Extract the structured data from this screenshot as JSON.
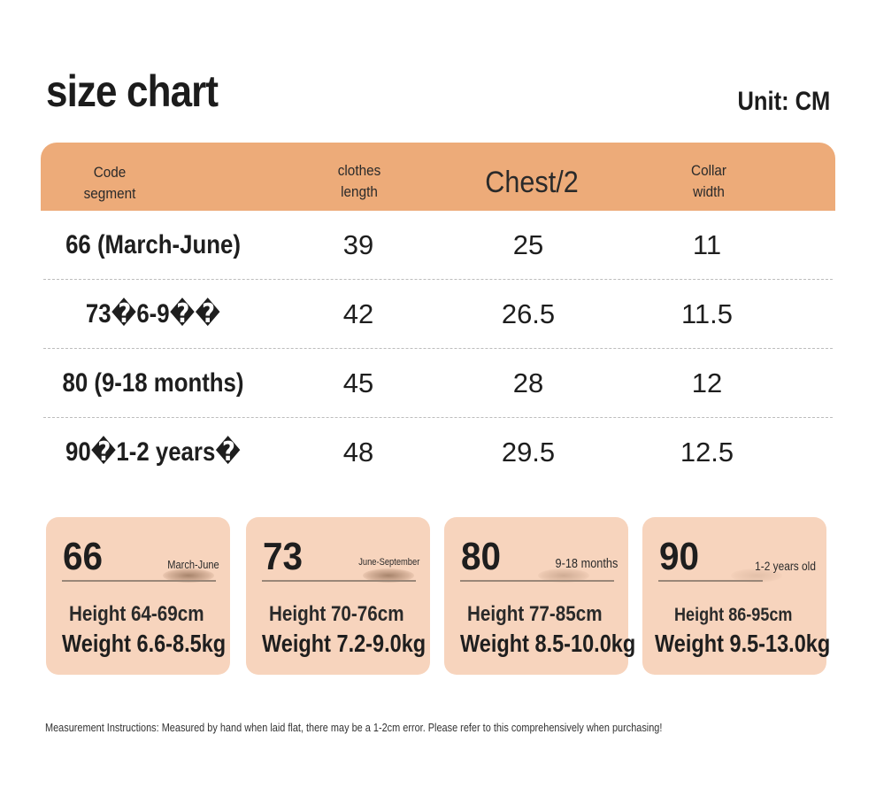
{
  "title": "size chart",
  "unit": "Unit: CM",
  "table": {
    "headers": {
      "code_line1": "Code",
      "code_line2": "segment",
      "length_line1": "clothes",
      "length_line2": "length",
      "chest": "Chest/2",
      "collar_line1": "Collar",
      "collar_line2": "width"
    },
    "rows": [
      {
        "code": "66 (March-June)",
        "length": "39",
        "chest": "25",
        "collar": "11"
      },
      {
        "code": "73�6-9��",
        "length": "42",
        "chest": "26.5",
        "collar": "11.5"
      },
      {
        "code": "80 (9-18 months)",
        "length": "45",
        "chest": "28",
        "collar": "12"
      },
      {
        "code": "90�1-2 years�",
        "length": "48",
        "chest": "29.5",
        "collar": "12.5"
      }
    ]
  },
  "cards": [
    {
      "size": "66",
      "period": "March-June",
      "height": "Height 64-69cm",
      "weight": "Weight 6.6-8.5kg"
    },
    {
      "size": "73",
      "period": "June-September",
      "height": "Height 70-76cm",
      "weight": "Weight 7.2-9.0kg"
    },
    {
      "size": "80",
      "period": "9-18 months",
      "height": "Height 77-85cm",
      "weight": "Weight 8.5-10.0kg"
    },
    {
      "size": "90",
      "period": "1-2 years old",
      "height": "Height 86-95cm",
      "weight": "Weight 9.5-13.0kg"
    }
  ],
  "note": "Measurement Instructions: Measured by hand when laid flat, there may be a 1-2cm error. Please refer to this comprehensively when purchasing!",
  "colors": {
    "header_bg": "#edab79",
    "card_bg": "#f7d4bd"
  }
}
